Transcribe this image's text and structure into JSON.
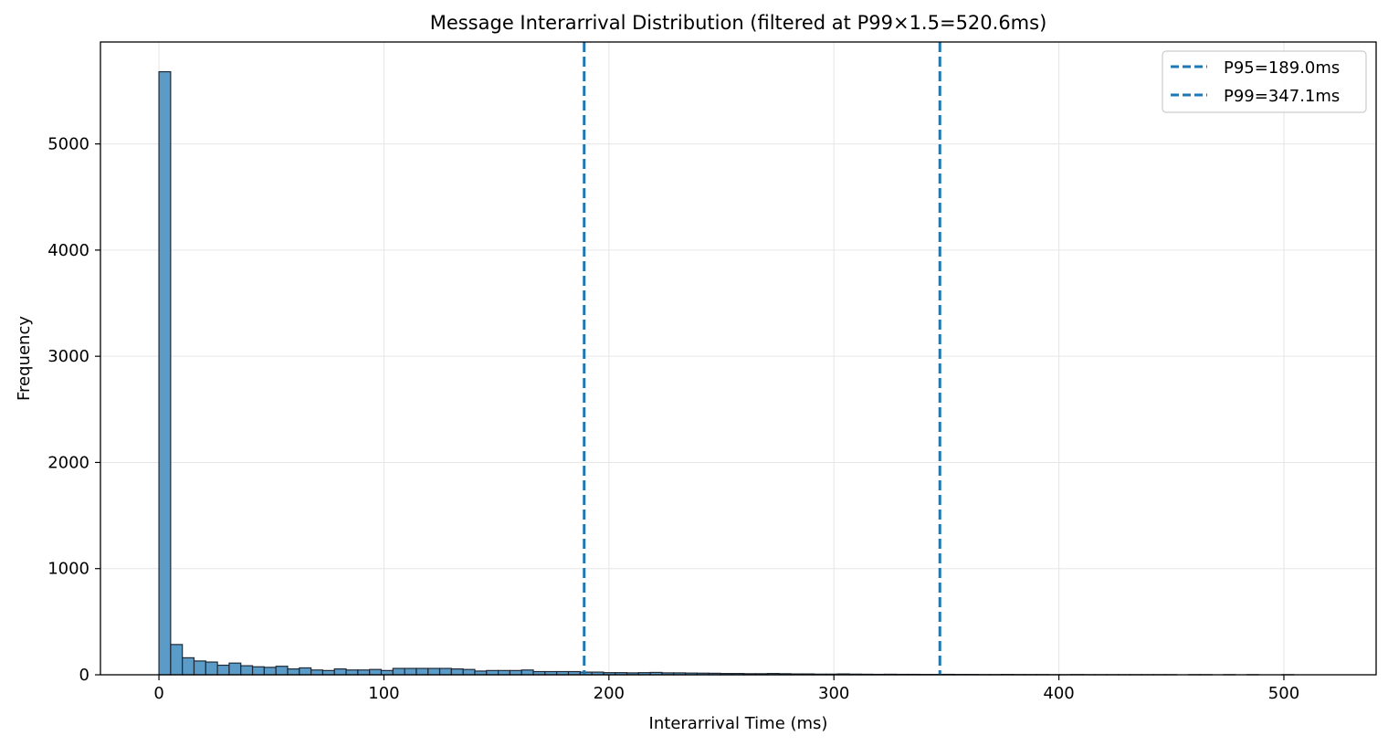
{
  "chart_data": {
    "type": "bar",
    "title": "Message Interarrival Distribution (filtered at P99×1.5=520.6ms)",
    "xlabel": "Interarrival Time (ms)",
    "ylabel": "Frequency",
    "xlim": [
      -26,
      541
    ],
    "ylim": [
      0,
      5960
    ],
    "xticks": [
      0,
      100,
      200,
      300,
      400,
      500
    ],
    "yticks": [
      0,
      1000,
      2000,
      3000,
      4000,
      5000
    ],
    "grid": true,
    "bin_start": 0,
    "bin_width": 5.2,
    "bar_color": "#5b9bc8",
    "bar_edge_color": "#1f2a36",
    "values": [
      5680,
      285,
      160,
      130,
      120,
      90,
      110,
      85,
      75,
      70,
      80,
      55,
      65,
      45,
      40,
      55,
      45,
      45,
      50,
      40,
      60,
      60,
      60,
      60,
      60,
      55,
      50,
      35,
      40,
      40,
      40,
      45,
      30,
      30,
      30,
      30,
      25,
      25,
      20,
      20,
      18,
      20,
      22,
      18,
      18,
      16,
      15,
      14,
      12,
      12,
      10,
      10,
      12,
      10,
      8,
      8,
      6,
      6,
      8,
      6,
      5,
      4,
      5,
      4,
      4,
      3,
      3,
      4,
      3,
      3,
      2,
      2,
      3,
      2,
      2,
      2,
      1,
      1,
      2,
      1,
      1,
      1,
      1,
      1,
      1,
      1,
      1,
      0,
      1,
      1,
      0,
      1,
      0,
      1,
      0,
      0,
      1,
      0,
      0,
      0
    ],
    "vlines": [
      {
        "label": "P95=189.0ms",
        "x": 189.0,
        "color": "#1f77b4"
      },
      {
        "label": "P99=347.1ms",
        "x": 347.1,
        "color": "#1f77b4"
      }
    ],
    "legend_position": "top-right"
  }
}
